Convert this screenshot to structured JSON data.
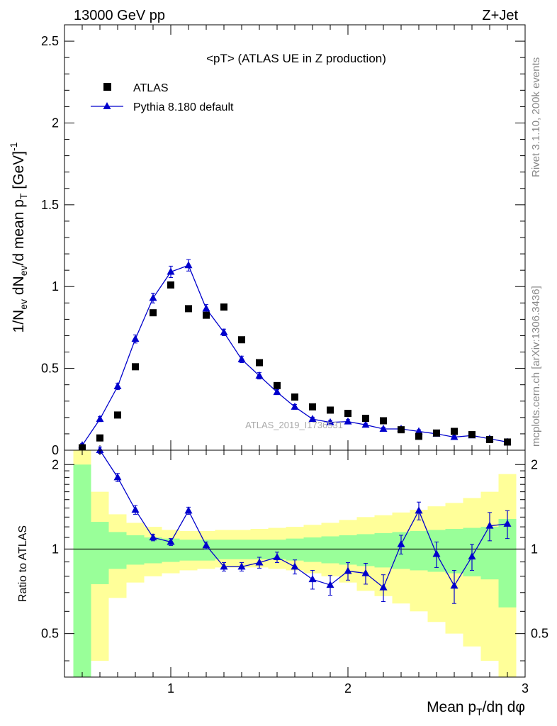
{
  "header": {
    "energy": "13000 GeV pp",
    "process": "Z+Jet"
  },
  "side_labels": {
    "rivet": "Rivet 3.1.10,  200k events",
    "mcplots": "mcplots.cern.ch [arXiv:1306.3436]"
  },
  "watermark": "ATLAS_2019_I1736531",
  "colors": {
    "mc": "#0000cc",
    "data": "#000000",
    "band_inner": "#99ff99",
    "band_outer": "#ffff99"
  },
  "chart_data": [
    {
      "type": "scatter",
      "title": "<pT> (ATLAS UE in Z production)",
      "ylabel": "1/N_ev dN_ev/d mean p_T [GeV]^-1",
      "xlim": [
        0.4,
        3.0
      ],
      "ylim": [
        0,
        2.6
      ],
      "yticks": [
        0,
        0.5,
        1,
        1.5,
        2,
        2.5
      ],
      "ytick_labels": [
        "0",
        "0.5",
        "1",
        "1.5",
        "2",
        "2.5"
      ],
      "legend_position": "top-left",
      "x": [
        0.5,
        0.6,
        0.7,
        0.8,
        0.9,
        1.0,
        1.1,
        1.2,
        1.3,
        1.4,
        1.5,
        1.6,
        1.7,
        1.8,
        1.9,
        2.0,
        2.1,
        2.2,
        2.3,
        2.4,
        2.5,
        2.6,
        2.7,
        2.8,
        2.9
      ],
      "series": [
        {
          "name": "ATLAS",
          "marker": "square",
          "values": [
            0.015,
            0.075,
            0.215,
            0.51,
            0.84,
            1.01,
            0.865,
            0.825,
            0.875,
            0.675,
            0.535,
            0.395,
            0.325,
            0.265,
            0.245,
            0.225,
            0.195,
            0.18,
            0.125,
            0.085,
            0.105,
            0.115,
            0.095,
            0.065,
            0.05
          ]
        },
        {
          "name": "Pythia 8.180 default",
          "marker": "triangle",
          "values": [
            0.03,
            0.19,
            0.39,
            0.68,
            0.93,
            1.09,
            1.13,
            0.865,
            0.72,
            0.555,
            0.455,
            0.355,
            0.265,
            0.19,
            0.17,
            0.175,
            0.155,
            0.13,
            0.13,
            0.115,
            0.1,
            0.08,
            0.09,
            0.07,
            0.05
          ],
          "errors": [
            0.01,
            0.015,
            0.02,
            0.025,
            0.03,
            0.035,
            0.035,
            0.025,
            0.02,
            0.02,
            0.02,
            0.015,
            0.015,
            0.012,
            0.012,
            0.012,
            0.01,
            0.01,
            0.01,
            0.01,
            0.01,
            0.008,
            0.008,
            0.008,
            0.008
          ]
        }
      ]
    },
    {
      "type": "line",
      "ylabel": "Ratio to ATLAS",
      "xlabel": "Mean p_T/dη dφ",
      "xlim": [
        0.4,
        3.0
      ],
      "ylim": [
        0.35,
        2.25
      ],
      "xticks": [
        1,
        2,
        3
      ],
      "xtick_labels": [
        "1",
        "2",
        "3"
      ],
      "yticks": [
        0.5,
        1,
        2
      ],
      "ytick_labels": [
        "0.5",
        "1",
        "2"
      ],
      "bin_edges": [
        0.45,
        0.55,
        0.65,
        0.75,
        0.85,
        0.95,
        1.05,
        1.15,
        1.25,
        1.35,
        1.45,
        1.55,
        1.65,
        1.75,
        1.85,
        1.95,
        2.05,
        2.15,
        2.25,
        2.35,
        2.45,
        2.55,
        2.65,
        2.75,
        2.85,
        2.95
      ],
      "band_inner_low": [
        0.35,
        0.75,
        0.85,
        0.88,
        0.89,
        0.9,
        0.91,
        0.91,
        0.92,
        0.92,
        0.92,
        0.92,
        0.91,
        0.9,
        0.89,
        0.88,
        0.87,
        0.86,
        0.85,
        0.84,
        0.83,
        0.82,
        0.8,
        0.78,
        0.62
      ],
      "band_inner_high": [
        2.0,
        1.25,
        1.15,
        1.12,
        1.1,
        1.09,
        1.08,
        1.08,
        1.08,
        1.08,
        1.08,
        1.08,
        1.09,
        1.1,
        1.11,
        1.12,
        1.13,
        1.14,
        1.15,
        1.16,
        1.17,
        1.18,
        1.19,
        1.2,
        1.28
      ],
      "band_outer_low": [
        0.35,
        0.4,
        0.67,
        0.76,
        0.8,
        0.82,
        0.84,
        0.85,
        0.86,
        0.86,
        0.86,
        0.85,
        0.84,
        0.82,
        0.8,
        0.76,
        0.71,
        0.68,
        0.64,
        0.6,
        0.55,
        0.5,
        0.45,
        0.4,
        0.35
      ],
      "band_outer_high": [
        2.25,
        1.6,
        1.33,
        1.24,
        1.2,
        1.17,
        1.16,
        1.16,
        1.17,
        1.17,
        1.18,
        1.19,
        1.2,
        1.22,
        1.24,
        1.27,
        1.3,
        1.32,
        1.35,
        1.38,
        1.42,
        1.46,
        1.52,
        1.6,
        1.85
      ],
      "x": [
        0.6,
        0.7,
        0.8,
        0.9,
        1.0,
        1.1,
        1.2,
        1.3,
        1.4,
        1.5,
        1.6,
        1.7,
        1.8,
        1.9,
        2.0,
        2.1,
        2.2,
        2.3,
        2.4,
        2.5,
        2.6,
        2.7,
        2.8,
        2.9
      ],
      "series": [
        {
          "name": "Pythia 8.180 default",
          "values": [
            2.25,
            1.8,
            1.38,
            1.1,
            1.06,
            1.37,
            1.03,
            0.865,
            0.865,
            0.895,
            0.935,
            0.865,
            0.78,
            0.745,
            0.835,
            0.82,
            0.73,
            1.04,
            1.37,
            0.96,
            0.74,
            0.94,
            1.21,
            1.23
          ],
          "errors": [
            0.06,
            0.06,
            0.05,
            0.03,
            0.03,
            0.04,
            0.03,
            0.03,
            0.03,
            0.04,
            0.04,
            0.05,
            0.06,
            0.06,
            0.06,
            0.07,
            0.08,
            0.08,
            0.1,
            0.1,
            0.1,
            0.1,
            0.14,
            0.14
          ]
        }
      ]
    }
  ]
}
